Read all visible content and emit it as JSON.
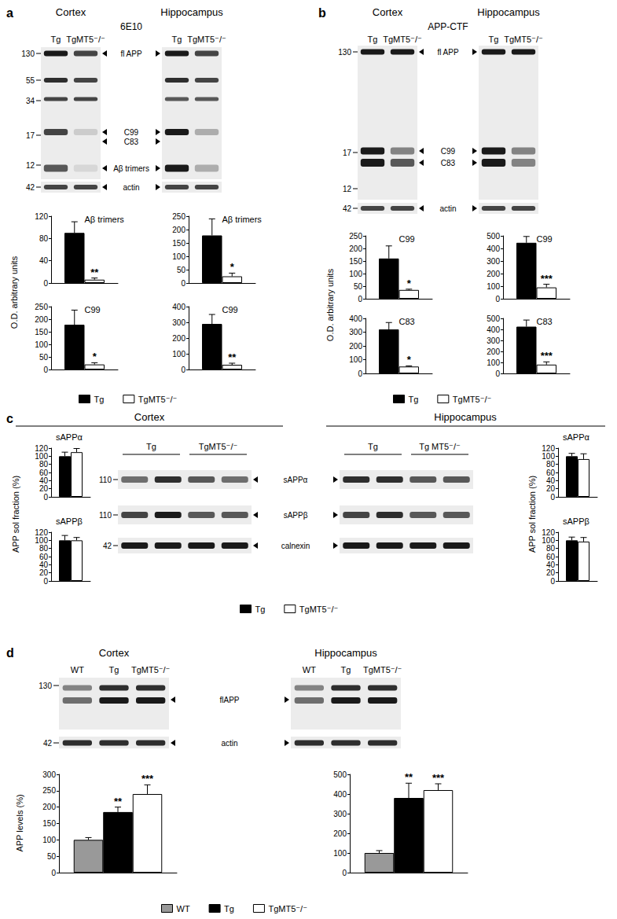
{
  "chart_data": [
    {
      "type": "bar",
      "title": "Aβ trimers",
      "ylim": [
        0,
        120
      ],
      "yticks": [
        0,
        40,
        80,
        120
      ],
      "tick_labels": "y",
      "grid": false,
      "series": [
        {
          "name": "Tg",
          "color": "#000000",
          "values": [
            90
          ],
          "errors": [
            20
          ]
        },
        {
          "name": "TgMT5⁻/⁻",
          "color": "#ffffff",
          "values": [
            6
          ],
          "errors": [
            3
          ],
          "significance": "**"
        }
      ]
    },
    {
      "type": "bar",
      "title": "Aβ trimers",
      "ylim": [
        0,
        250
      ],
      "yticks": [
        0,
        50,
        100,
        150,
        200,
        250
      ],
      "tick_labels": "y",
      "grid": false,
      "series": [
        {
          "name": "Tg",
          "color": "#000000",
          "values": [
            178
          ],
          "errors": [
            62
          ]
        },
        {
          "name": "TgMT5⁻/⁻",
          "color": "#ffffff",
          "values": [
            25
          ],
          "errors": [
            12
          ],
          "significance": "*"
        }
      ]
    },
    {
      "type": "bar",
      "title": "C99",
      "ylim": [
        0,
        250
      ],
      "yticks": [
        0,
        50,
        100,
        150,
        200,
        250
      ],
      "tick_labels": "y",
      "grid": false,
      "series": [
        {
          "name": "Tg",
          "color": "#000000",
          "values": [
            178
          ],
          "errors": [
            58
          ]
        },
        {
          "name": "TgMT5⁻/⁻",
          "color": "#ffffff",
          "values": [
            20
          ],
          "errors": [
            7
          ],
          "significance": "*"
        }
      ]
    },
    {
      "type": "bar",
      "title": "C99",
      "ylim": [
        0,
        400
      ],
      "yticks": [
        0,
        100,
        200,
        300,
        400
      ],
      "tick_labels": "y",
      "grid": false,
      "series": [
        {
          "name": "Tg",
          "color": "#000000",
          "values": [
            290
          ],
          "errors": [
            60
          ]
        },
        {
          "name": "TgMT5⁻/⁻",
          "color": "#ffffff",
          "values": [
            30
          ],
          "errors": [
            10
          ],
          "significance": "**"
        }
      ]
    },
    {
      "type": "bar",
      "title": "C99",
      "ylim": [
        0,
        250
      ],
      "yticks": [
        0,
        50,
        100,
        150,
        200,
        250
      ],
      "tick_labels": "y",
      "grid": false,
      "series": [
        {
          "name": "Tg",
          "color": "#000000",
          "values": [
            160
          ],
          "errors": [
            50
          ]
        },
        {
          "name": "TgMT5⁻/⁻",
          "color": "#ffffff",
          "values": [
            35
          ],
          "errors": [
            3
          ],
          "significance": "*"
        }
      ]
    },
    {
      "type": "bar",
      "title": "C99",
      "ylim": [
        0,
        500
      ],
      "yticks": [
        0,
        100,
        200,
        300,
        400,
        500
      ],
      "tick_labels": "y",
      "grid": false,
      "series": [
        {
          "name": "Tg",
          "color": "#000000",
          "values": [
            445
          ],
          "errors": [
            50
          ]
        },
        {
          "name": "TgMT5⁻/⁻",
          "color": "#ffffff",
          "values": [
            90
          ],
          "errors": [
            25
          ],
          "significance": "***"
        }
      ]
    },
    {
      "type": "bar",
      "title": "C83",
      "ylim": [
        0,
        400
      ],
      "yticks": [
        0,
        100,
        200,
        300,
        400
      ],
      "tick_labels": "y",
      "grid": false,
      "series": [
        {
          "name": "Tg",
          "color": "#000000",
          "values": [
            320
          ],
          "errors": [
            50
          ]
        },
        {
          "name": "TgMT5⁻/⁻",
          "color": "#ffffff",
          "values": [
            50
          ],
          "errors": [
            5
          ],
          "significance": "*"
        }
      ]
    },
    {
      "type": "bar",
      "title": "C83",
      "ylim": [
        0,
        500
      ],
      "yticks": [
        0,
        100,
        200,
        300,
        400,
        500
      ],
      "tick_labels": "y",
      "grid": false,
      "series": [
        {
          "name": "Tg",
          "color": "#000000",
          "values": [
            425
          ],
          "errors": [
            60
          ]
        },
        {
          "name": "TgMT5⁻/⁻",
          "color": "#ffffff",
          "values": [
            80
          ],
          "errors": [
            25
          ],
          "significance": "***"
        }
      ]
    },
    {
      "type": "bar",
      "title": "sAPPα",
      "ylim": [
        0,
        120
      ],
      "yticks": [
        0,
        20,
        40,
        60,
        80,
        100,
        120
      ],
      "tick_labels": "y",
      "grid": false,
      "series": [
        {
          "name": "Tg",
          "color": "#000000",
          "values": [
            100
          ],
          "errors": [
            10
          ]
        },
        {
          "name": "TgMT5⁻/⁻",
          "color": "#ffffff",
          "values": [
            110
          ],
          "errors": [
            9
          ]
        }
      ]
    },
    {
      "type": "bar",
      "title": "sAPPβ",
      "ylim": [
        0,
        120
      ],
      "yticks": [
        0,
        20,
        40,
        60,
        80,
        100,
        120
      ],
      "tick_labels": "y",
      "grid": false,
      "series": [
        {
          "name": "Tg",
          "color": "#000000",
          "values": [
            100
          ],
          "errors": [
            12
          ]
        },
        {
          "name": "TgMT5⁻/⁻",
          "color": "#ffffff",
          "values": [
            100
          ],
          "errors": [
            7
          ]
        }
      ]
    },
    {
      "type": "bar",
      "title": "sAPPα",
      "ylim": [
        0,
        120
      ],
      "yticks": [
        0,
        20,
        40,
        60,
        80,
        100,
        120
      ],
      "tick_labels": "y",
      "grid": false,
      "series": [
        {
          "name": "Tg",
          "color": "#000000",
          "values": [
            100
          ],
          "errors": [
            7
          ]
        },
        {
          "name": "TgMT5⁻/⁻",
          "color": "#ffffff",
          "values": [
            93
          ],
          "errors": [
            13
          ]
        }
      ]
    },
    {
      "type": "bar",
      "title": "sAPPβ",
      "ylim": [
        0,
        120
      ],
      "yticks": [
        0,
        20,
        40,
        60,
        80,
        100,
        120
      ],
      "tick_labels": "y",
      "grid": false,
      "series": [
        {
          "name": "Tg",
          "color": "#000000",
          "values": [
            100
          ],
          "errors": [
            8
          ]
        },
        {
          "name": "TgMT5⁻/⁻",
          "color": "#ffffff",
          "values": [
            97
          ],
          "errors": [
            10
          ]
        }
      ]
    },
    {
      "type": "bar",
      "ylim": [
        0,
        300
      ],
      "yticks": [
        0,
        50,
        100,
        150,
        200,
        250,
        300
      ],
      "tick_labels": "y",
      "grid": false,
      "series": [
        {
          "name": "WT",
          "color": "#999999",
          "values": [
            100
          ],
          "errors": [
            7
          ]
        },
        {
          "name": "Tg",
          "color": "#000000",
          "values": [
            185
          ],
          "errors": [
            15
          ],
          "significance": "**"
        },
        {
          "name": "TgMT5⁻/⁻",
          "color": "#ffffff",
          "values": [
            240
          ],
          "errors": [
            28
          ],
          "significance": "***"
        }
      ]
    },
    {
      "type": "bar",
      "ylim": [
        0,
        500
      ],
      "yticks": [
        0,
        100,
        200,
        300,
        400,
        500
      ],
      "tick_labels": "y",
      "grid": false,
      "series": [
        {
          "name": "WT",
          "color": "#999999",
          "values": [
            100
          ],
          "errors": [
            12
          ]
        },
        {
          "name": "Tg",
          "color": "#000000",
          "values": [
            380
          ],
          "errors": [
            75
          ],
          "significance": "**"
        },
        {
          "name": "TgMT5⁻/⁻",
          "color": "#ffffff",
          "values": [
            420
          ],
          "errors": [
            32
          ],
          "significance": "***"
        }
      ]
    }
  ],
  "panels": [
    {
      "label": "a",
      "antibody": "6E10",
      "ylabel": "O.D. arbitrary units",
      "legend": "bottom",
      "blots": [
        {
          "header": "Cortex",
          "lanes": [
            "Tg",
            "TgMT5⁻/⁻"
          ],
          "markers": [
            130,
            55,
            34,
            17,
            12,
            42
          ]
        },
        {
          "header": "Hippocampus",
          "lanes": [
            "Tg",
            "TgMT5⁻/⁻"
          ]
        }
      ],
      "bands": [
        "fl APP",
        "C99",
        "C83",
        "Aβ trimers",
        "actin"
      ]
    },
    {
      "label": "b",
      "antibody": "APP-CTF",
      "ylabel": "O.D. arbitrary units",
      "legend": "bottom",
      "blots": [
        {
          "header": "Cortex",
          "lanes": [
            "Tg",
            "TgMT5⁻/⁻"
          ],
          "markers": [
            130,
            17,
            12,
            42
          ]
        },
        {
          "header": "Hippocampus",
          "lanes": [
            "Tg",
            "TgMT5⁻/⁻"
          ]
        }
      ],
      "bands": [
        "fl APP",
        "C99",
        "C83",
        "actin"
      ]
    },
    {
      "label": "c",
      "ylabel": "APP sol fraction (%)",
      "legend": "bottom",
      "blots": [
        {
          "header": "Cortex",
          "lanes": [
            "Tg",
            "TgMT5⁻/⁻"
          ],
          "markers": [
            110,
            110,
            42
          ]
        },
        {
          "header": "Hippocampus",
          "lanes": [
            "Tg",
            "Tg MT5⁻/⁻"
          ]
        }
      ],
      "bands": [
        "sAPPα",
        "sAPPβ",
        "calnexin"
      ]
    },
    {
      "label": "d",
      "ylabel": "APP levels (%)",
      "legend": "bottom",
      "blots": [
        {
          "header": "Cortex",
          "lanes": [
            "WT",
            "Tg",
            "TgMT5⁻/⁻"
          ],
          "markers": [
            130,
            42
          ]
        },
        {
          "header": "Hippocampus",
          "lanes": [
            "WT",
            "Tg",
            "TgMT5⁻/⁻"
          ]
        }
      ],
      "bands": [
        "flAPP",
        "actin"
      ]
    }
  ]
}
